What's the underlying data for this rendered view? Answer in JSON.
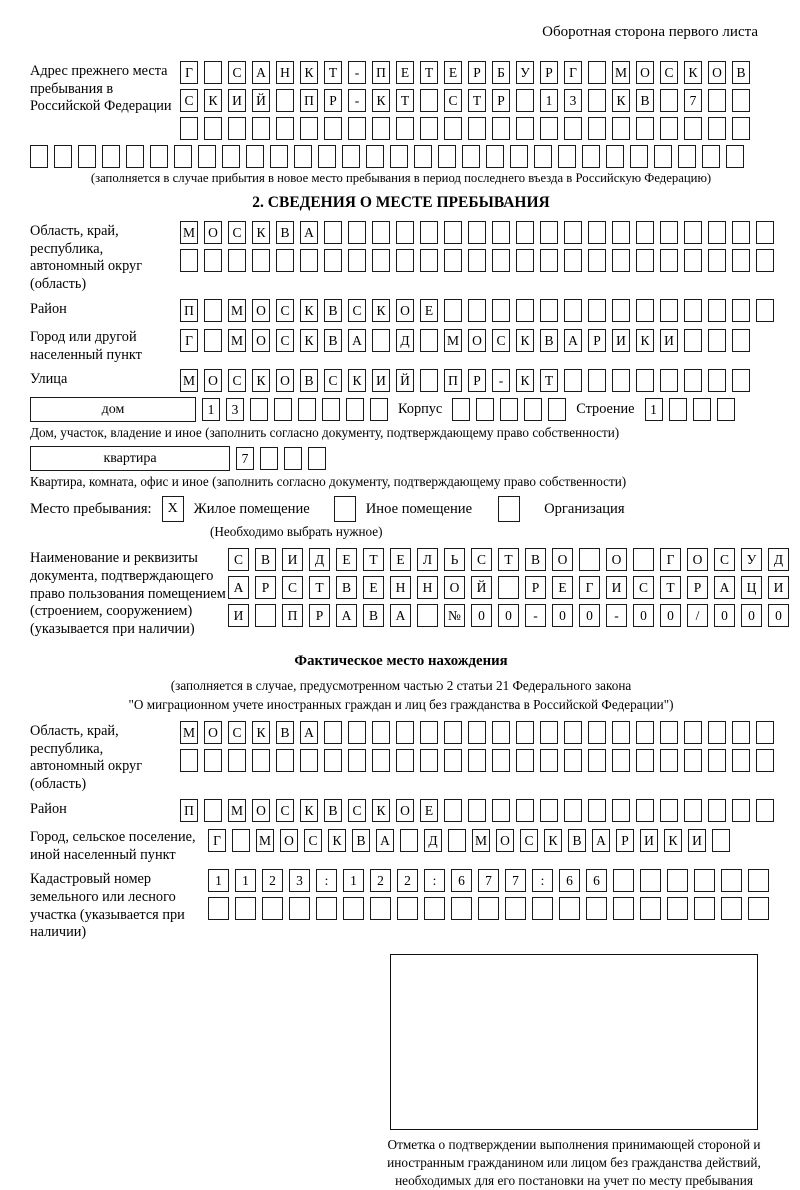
{
  "header": {
    "note": "Оборотная сторона первого листа"
  },
  "prev_address": {
    "label": "Адрес прежнего места пребывания в Российской Федерации",
    "line1": "Г_САНКТ-ПЕТЕРБУРГ_МОСКОВ",
    "line2": "СКИЙ_ПР-КТ_СТР_13_КВ_7__",
    "line3": "________________________",
    "line4": "______________________________",
    "note": "(заполняется в случае прибытия в новое место пребывания в период последнего въезда в Российскую Федерацию)"
  },
  "section2": {
    "title": "2. СВЕДЕНИЯ О МЕСТЕ ПРЕБЫВАНИЯ",
    "oblast": {
      "label": "Область, край, республика, автономный округ (область)",
      "line1": "МОСКВА___________________",
      "line2": "_________________________"
    },
    "raion": {
      "label": "Район",
      "line1": "П_МОСКВСКОЕ______________"
    },
    "gorod": {
      "label": "Город или другой населенный пункт",
      "line1": "Г_МОСКВА_Д_МОСКВАРИКИ___"
    },
    "ulitsa": {
      "label": "Улица",
      "line1": "МОСКОВСКИЙ_ПР-КТ________"
    },
    "dom_row": {
      "dom_label": "дом",
      "dom_value": "13______",
      "korpus_label": "Корпус",
      "korpus_value": "_____",
      "stroenie_label": "Строение",
      "stroenie_value": "1___"
    },
    "dom_note": "Дом, участок, владение и иное (заполнить согласно документу, подтверждающему право собственности)",
    "kvartira_row": {
      "label": "квартира",
      "value": "7___"
    },
    "kvartira_note": "Квартира, комната, офис и иное (заполнить согласно документу, подтверждающему право собственности)",
    "mesto": {
      "label": "Место пребывания:",
      "zhiloe_mark": "X",
      "zhiloe_label": "Жилое помещение",
      "inoe_mark": "",
      "inoe_label": "Иное помещение",
      "org_mark": "",
      "org_label": "Организация",
      "note": "(Необходимо выбрать нужное)"
    },
    "document": {
      "label": "Наименование и реквизиты документа, подтверждающего право пользования помещением (строением, сооружением) (указывается при наличии)",
      "line1": "СВИДЕТЕЛЬСТВО_О_ГОСУД",
      "line2": "АРСТВЕННОЙ_РЕГИСТРАЦИ",
      "line3": "И_ПРАВА_№00-00-00/000"
    }
  },
  "fact": {
    "title": "Фактическое место нахождения",
    "note1": "(заполняется в случае, предусмотренном частью 2 статьи 21 Федерального закона",
    "note2": "\"О миграционном учете иностранных граждан и лиц без гражданства в Российской Федерации\")",
    "oblast": {
      "label": "Область, край, республика, автономный округ (область)",
      "line1": "МОСКВА___________________",
      "line2": "_________________________"
    },
    "raion": {
      "label": "Район",
      "line1": "П_МОСКВСКОЕ______________"
    },
    "gorod": {
      "label": "Город, сельское поселение, иной населенный пункт",
      "line1": "Г_МОСКВА_Д_МОСКВАРИКИ_"
    },
    "kadastr": {
      "label": "Кадастровый номер земельного или лесного участка (указывается при наличии)",
      "line1": "1123:122:677:66______",
      "line2": "_____________________"
    }
  },
  "stamp": {
    "caption": "Отметка о подтверждении выполнения принимающей стороной и иностранным гражданином или лицом без гражданства действий, необходимых для его постановки на учет по месту пребывания"
  }
}
